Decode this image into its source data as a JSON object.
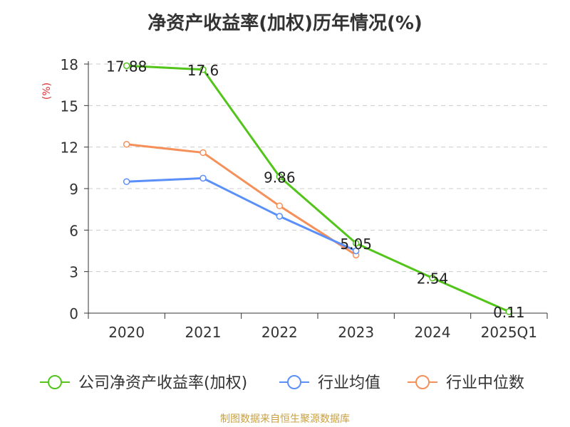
{
  "chart_data": {
    "type": "line",
    "title": "净资产收益率(加权)历年情况(%)",
    "ylabel": "(%)",
    "xlabel": "",
    "categories": [
      "2020",
      "2021",
      "2022",
      "2023",
      "2024",
      "2025Q1"
    ],
    "yticks": [
      0,
      3,
      6,
      9,
      12,
      15,
      18
    ],
    "ylim": [
      0,
      18
    ],
    "grid": true,
    "legend_position": "bottom",
    "series": [
      {
        "name": "公司净资产收益率(加权)",
        "color": "#52c41a",
        "values": [
          17.88,
          17.6,
          9.86,
          5.05,
          2.54,
          0.11
        ],
        "labels": [
          "17.88",
          "17.6",
          "9.86",
          "5.05",
          "2.54",
          "0.11"
        ]
      },
      {
        "name": "行业均值",
        "color": "#5b8ff9",
        "values": [
          9.5,
          9.75,
          7.0,
          4.5,
          null,
          null
        ]
      },
      {
        "name": "行业中位数",
        "color": "#f6905a",
        "values": [
          12.2,
          11.6,
          7.75,
          4.2,
          null,
          null
        ]
      }
    ]
  },
  "source_text": "制图数据来自恒生聚源数据库",
  "colors": {
    "title": "#333333",
    "axis": "#333333",
    "grid": "#cccccc",
    "ylabel": "#e03030",
    "source": "#c8a040"
  }
}
